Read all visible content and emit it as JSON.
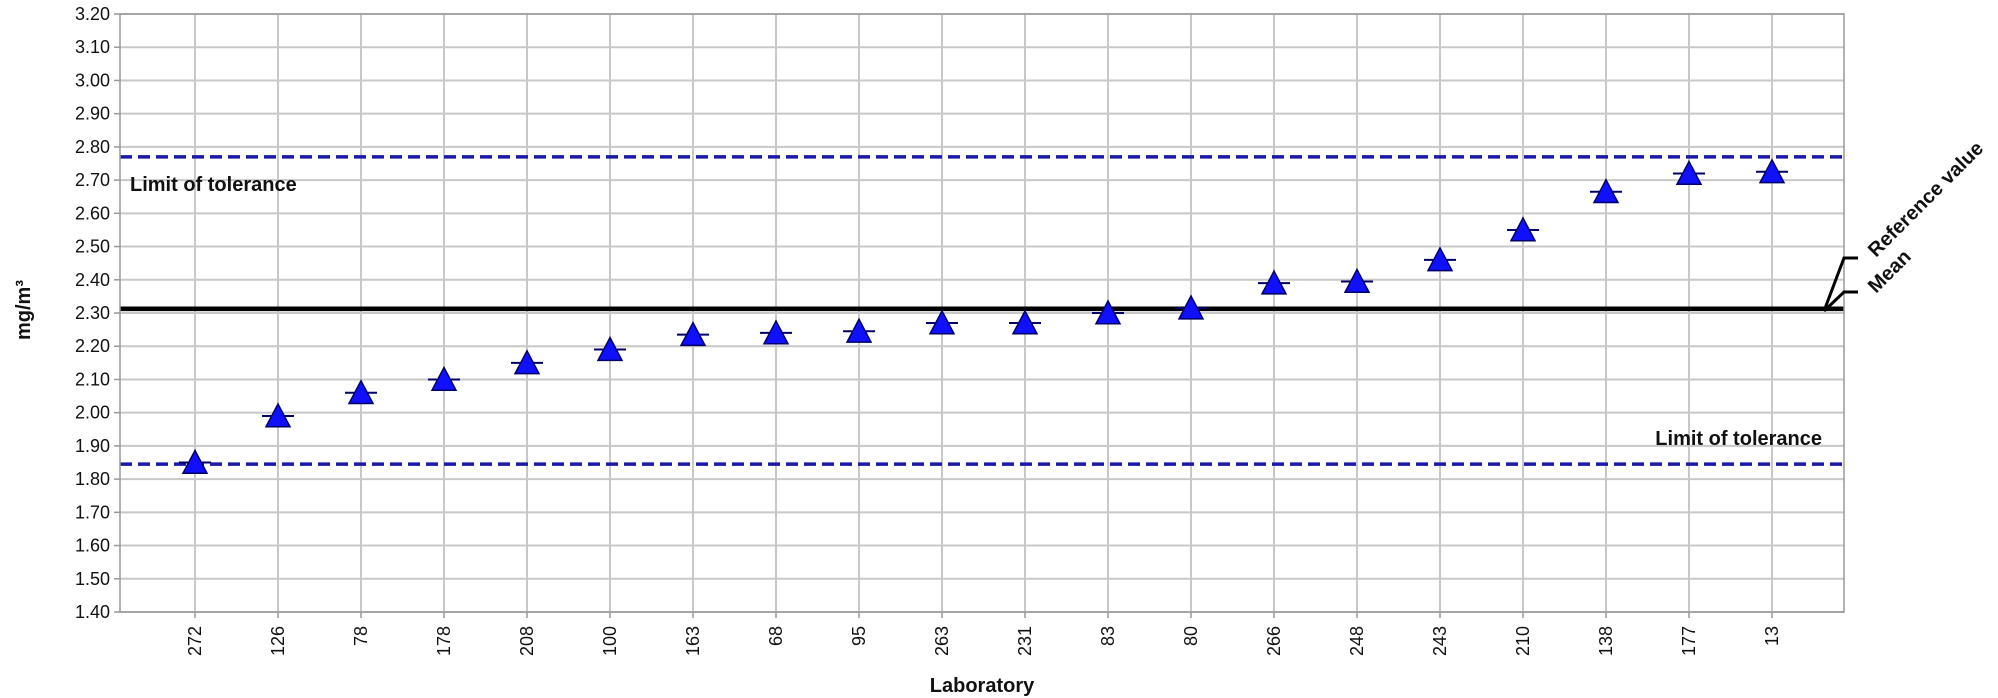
{
  "chart_data": {
    "type": "scatter",
    "xlabel": "Laboratory",
    "ylabel": "mg/m³",
    "ylim": [
      1.4,
      3.2
    ],
    "ytick_step": 0.1,
    "grid": true,
    "categories": [
      "272",
      "126",
      "78",
      "178",
      "208",
      "100",
      "163",
      "68",
      "95",
      "263",
      "231",
      "83",
      "80",
      "266",
      "248",
      "243",
      "210",
      "138",
      "177",
      "13"
    ],
    "values": [
      1.85,
      1.99,
      2.06,
      2.1,
      2.15,
      2.19,
      2.235,
      2.24,
      2.245,
      2.27,
      2.27,
      2.3,
      2.315,
      2.39,
      2.395,
      2.46,
      2.55,
      2.665,
      2.72,
      2.725
    ],
    "reference_lines": [
      {
        "name": "Limit of tolerance",
        "value": 2.77,
        "style": "dashed",
        "color": "#1a1aa6",
        "label_side": "left"
      },
      {
        "name": "Limit of tolerance",
        "value": 1.845,
        "style": "dashed",
        "color": "#1a1aa6",
        "label_side": "right"
      },
      {
        "name": "Reference value",
        "value": 2.315,
        "style": "solid",
        "color": "#000000"
      },
      {
        "name": "Mean",
        "value": 2.31,
        "style": "solid",
        "color": "#000000"
      }
    ],
    "marker": {
      "shape": "triangle",
      "color": "#1010ff",
      "stroke": "#000066"
    }
  }
}
